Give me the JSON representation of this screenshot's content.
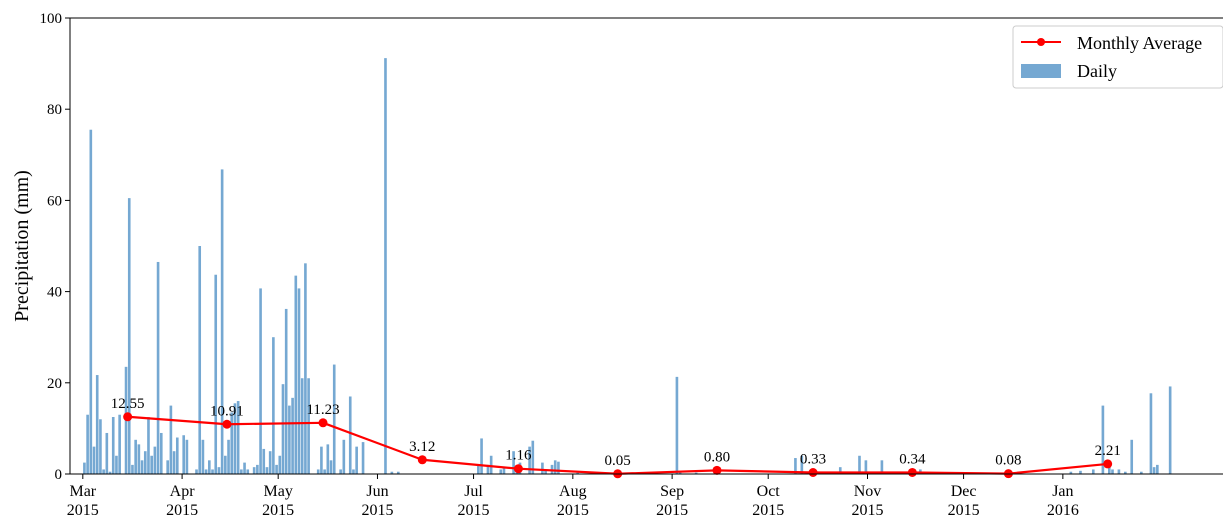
{
  "chart_data": {
    "type": "bar",
    "title": "",
    "xlabel": "",
    "ylabel": "Precipitation (mm)",
    "xlim": [
      "2015-02-25",
      "2016-02-20"
    ],
    "ylim": [
      0,
      100
    ],
    "grid": false,
    "legend_position": "top-right",
    "y_ticks": [
      0,
      20,
      40,
      60,
      80,
      100
    ],
    "x_ticks": [
      {
        "date": "2015-03-01",
        "label": [
          "Mar",
          "2015"
        ]
      },
      {
        "date": "2015-04-01",
        "label": [
          "Apr",
          "2015"
        ]
      },
      {
        "date": "2015-05-01",
        "label": [
          "May",
          "2015"
        ]
      },
      {
        "date": "2015-06-01",
        "label": [
          "Jun",
          "2015"
        ]
      },
      {
        "date": "2015-07-01",
        "label": [
          "Jul",
          "2015"
        ]
      },
      {
        "date": "2015-08-01",
        "label": [
          "Aug",
          "2015"
        ]
      },
      {
        "date": "2015-09-01",
        "label": [
          "Sep",
          "2015"
        ]
      },
      {
        "date": "2015-10-01",
        "label": [
          "Oct",
          "2015"
        ]
      },
      {
        "date": "2015-11-01",
        "label": [
          "Nov",
          "2015"
        ]
      },
      {
        "date": "2015-12-01",
        "label": [
          "Dec",
          "2015"
        ]
      },
      {
        "date": "2016-01-01",
        "label": [
          "Jan",
          "2016"
        ]
      }
    ],
    "series": [
      {
        "name": "Daily",
        "kind": "bar",
        "color": "#75a8d2",
        "points": [
          [
            "2015-03-01",
            2.5
          ],
          [
            "2015-03-02",
            13
          ],
          [
            "2015-03-03",
            75.5
          ],
          [
            "2015-03-04",
            6
          ],
          [
            "2015-03-05",
            21.7
          ],
          [
            "2015-03-06",
            12
          ],
          [
            "2015-03-07",
            1
          ],
          [
            "2015-03-08",
            9
          ],
          [
            "2015-03-09",
            0.5
          ],
          [
            "2015-03-10",
            12.5
          ],
          [
            "2015-03-11",
            4
          ],
          [
            "2015-03-12",
            13
          ],
          [
            "2015-03-14",
            23.5
          ],
          [
            "2015-03-15",
            60.5
          ],
          [
            "2015-03-16",
            2
          ],
          [
            "2015-03-17",
            7.5
          ],
          [
            "2015-03-18",
            6.5
          ],
          [
            "2015-03-19",
            3
          ],
          [
            "2015-03-20",
            5
          ],
          [
            "2015-03-21",
            12.5
          ],
          [
            "2015-03-22",
            4
          ],
          [
            "2015-03-23",
            6
          ],
          [
            "2015-03-24",
            46.5
          ],
          [
            "2015-03-25",
            9
          ],
          [
            "2015-03-27",
            3
          ],
          [
            "2015-03-28",
            15
          ],
          [
            "2015-03-29",
            5
          ],
          [
            "2015-03-30",
            8
          ],
          [
            "2015-04-01",
            8.5
          ],
          [
            "2015-04-02",
            7.5
          ],
          [
            "2015-04-05",
            1
          ],
          [
            "2015-04-06",
            50
          ],
          [
            "2015-04-07",
            7.5
          ],
          [
            "2015-04-08",
            1
          ],
          [
            "2015-04-09",
            3
          ],
          [
            "2015-04-10",
            1
          ],
          [
            "2015-04-11",
            43.7
          ],
          [
            "2015-04-12",
            1.5
          ],
          [
            "2015-04-13",
            66.8
          ],
          [
            "2015-04-14",
            4
          ],
          [
            "2015-04-15",
            7.5
          ],
          [
            "2015-04-16",
            13.5
          ],
          [
            "2015-04-17",
            15.5
          ],
          [
            "2015-04-18",
            16
          ],
          [
            "2015-04-19",
            1
          ],
          [
            "2015-04-20",
            2.5
          ],
          [
            "2015-04-21",
            1
          ],
          [
            "2015-04-23",
            1.5
          ],
          [
            "2015-04-24",
            2
          ],
          [
            "2015-04-25",
            40.7
          ],
          [
            "2015-04-26",
            5.5
          ],
          [
            "2015-04-27",
            1.5
          ],
          [
            "2015-04-28",
            5
          ],
          [
            "2015-04-29",
            30
          ],
          [
            "2015-04-30",
            2
          ],
          [
            "2015-05-01",
            4
          ],
          [
            "2015-05-02",
            19.7
          ],
          [
            "2015-05-03",
            36.2
          ],
          [
            "2015-05-04",
            15
          ],
          [
            "2015-05-05",
            16.7
          ],
          [
            "2015-05-06",
            43.5
          ],
          [
            "2015-05-07",
            40.7
          ],
          [
            "2015-05-08",
            21
          ],
          [
            "2015-05-09",
            46.2
          ],
          [
            "2015-05-10",
            21
          ],
          [
            "2015-05-13",
            1
          ],
          [
            "2015-05-14",
            6
          ],
          [
            "2015-05-15",
            1
          ],
          [
            "2015-05-16",
            6.5
          ],
          [
            "2015-05-17",
            3
          ],
          [
            "2015-05-18",
            24
          ],
          [
            "2015-05-20",
            1
          ],
          [
            "2015-05-21",
            7.5
          ],
          [
            "2015-05-23",
            17
          ],
          [
            "2015-05-24",
            1
          ],
          [
            "2015-05-25",
            6
          ],
          [
            "2015-05-27",
            7
          ],
          [
            "2015-06-03",
            91.2
          ],
          [
            "2015-06-05",
            0.5
          ],
          [
            "2015-06-07",
            0.5
          ],
          [
            "2015-07-02",
            2
          ],
          [
            "2015-07-03",
            7.8
          ],
          [
            "2015-07-05",
            2
          ],
          [
            "2015-07-06",
            4
          ],
          [
            "2015-07-09",
            1
          ],
          [
            "2015-07-10",
            1.5
          ],
          [
            "2015-07-13",
            5
          ],
          [
            "2015-07-14",
            0.5
          ],
          [
            "2015-07-15",
            2.5
          ],
          [
            "2015-07-18",
            6
          ],
          [
            "2015-07-19",
            7.3
          ],
          [
            "2015-07-22",
            2.5
          ],
          [
            "2015-07-23",
            1
          ],
          [
            "2015-07-25",
            2
          ],
          [
            "2015-07-26",
            3
          ],
          [
            "2015-07-27",
            2.7
          ],
          [
            "2015-08-02",
            0.3
          ],
          [
            "2015-09-02",
            21.3
          ],
          [
            "2015-09-03",
            0.5
          ],
          [
            "2015-09-08",
            0.3
          ],
          [
            "2015-10-09",
            3.5
          ],
          [
            "2015-10-11",
            4
          ],
          [
            "2015-10-23",
            1.5
          ],
          [
            "2015-10-29",
            4
          ],
          [
            "2015-10-31",
            3
          ],
          [
            "2015-11-05",
            3
          ],
          [
            "2015-11-17",
            1
          ],
          [
            "2016-01-03",
            0.5
          ],
          [
            "2016-01-06",
            0.7
          ],
          [
            "2016-01-10",
            1
          ],
          [
            "2016-01-13",
            15
          ],
          [
            "2016-01-15",
            1.5
          ],
          [
            "2016-01-16",
            1
          ],
          [
            "2016-01-18",
            1
          ],
          [
            "2016-01-20",
            0.5
          ],
          [
            "2016-01-22",
            7.5
          ],
          [
            "2016-01-25",
            0.5
          ],
          [
            "2016-01-28",
            17.7
          ],
          [
            "2016-01-29",
            1.5
          ],
          [
            "2016-01-30",
            2
          ],
          [
            "2016-02-03",
            19.2
          ]
        ]
      },
      {
        "name": "Monthly Average",
        "kind": "line",
        "color": "#ff0000",
        "marker": "circle",
        "points": [
          [
            "2015-03-15",
            12.55,
            "12.55"
          ],
          [
            "2015-04-15",
            10.91,
            "10.91"
          ],
          [
            "2015-05-15",
            11.23,
            "11.23"
          ],
          [
            "2015-06-15",
            3.12,
            "3.12"
          ],
          [
            "2015-07-15",
            1.16,
            "1.16"
          ],
          [
            "2015-08-15",
            0.05,
            "0.05"
          ],
          [
            "2015-09-15",
            0.8,
            "0.80"
          ],
          [
            "2015-10-15",
            0.33,
            "0.33"
          ],
          [
            "2015-11-15",
            0.34,
            "0.34"
          ],
          [
            "2015-12-15",
            0.08,
            "0.08"
          ],
          [
            "2016-01-15",
            2.21,
            "2.21"
          ]
        ]
      }
    ]
  }
}
